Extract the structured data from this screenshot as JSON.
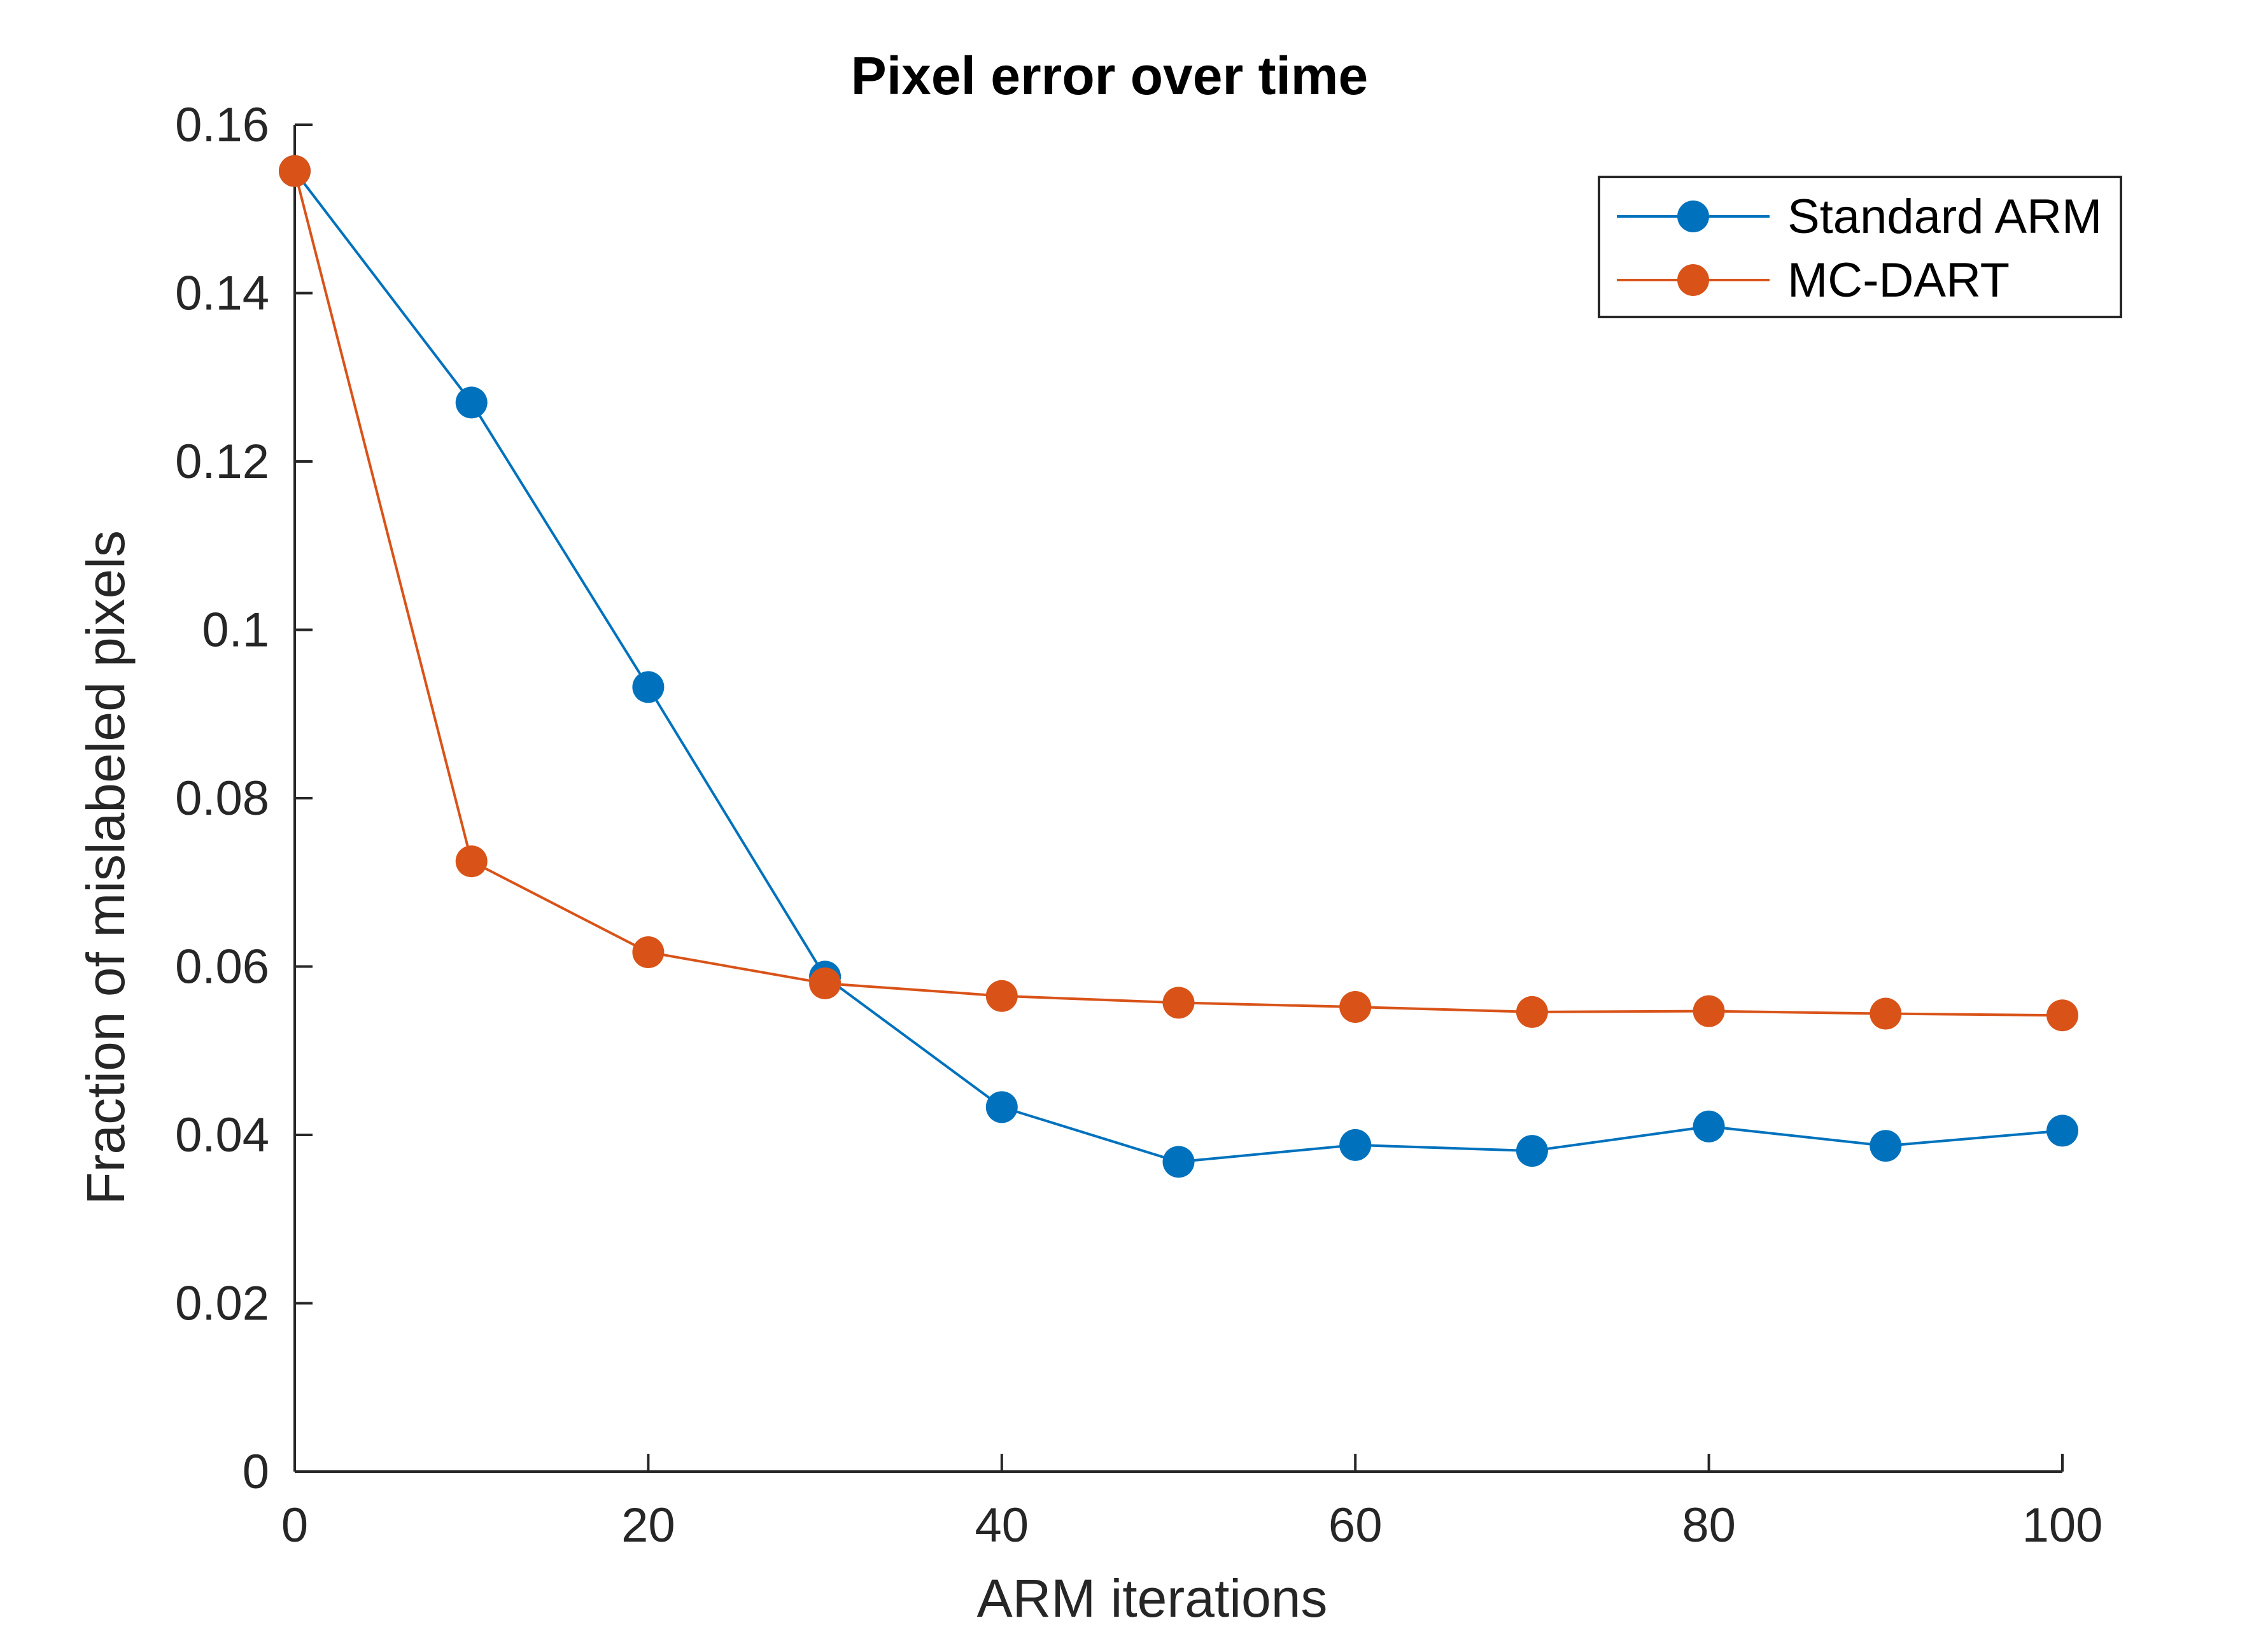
{
  "chart_data": {
    "type": "line",
    "title": "Pixel error over time",
    "xlabel": "ARM iterations",
    "ylabel": "Fraction of mislabeled pixels",
    "xlim": [
      0,
      100
    ],
    "ylim": [
      0,
      0.16
    ],
    "xticks": [
      0,
      20,
      40,
      60,
      80,
      100
    ],
    "xtick_labels": [
      "0",
      "20",
      "40",
      "60",
      "80",
      "100"
    ],
    "yticks": [
      0,
      0.02,
      0.04,
      0.06,
      0.08,
      0.1,
      0.12,
      0.14,
      0.16
    ],
    "ytick_labels": [
      "0",
      "0.02",
      "0.04",
      "0.06",
      "0.08",
      "0.1",
      "0.12",
      "0.14",
      "0.16"
    ],
    "grid": false,
    "legend_position": "top-right",
    "x": [
      0,
      10,
      20,
      30,
      40,
      50,
      60,
      70,
      80,
      90,
      100
    ],
    "series": [
      {
        "name": "Standard ARM",
        "color": "#0072BD",
        "values": [
          0.1545,
          0.127,
          0.0932,
          0.0588,
          0.0433,
          0.0368,
          0.0388,
          0.0381,
          0.041,
          0.0387,
          0.0405
        ]
      },
      {
        "name": "MC-DART",
        "color": "#D95319",
        "values": [
          0.1545,
          0.0725,
          0.0617,
          0.058,
          0.0565,
          0.0557,
          0.0552,
          0.0546,
          0.0547,
          0.0544,
          0.0542
        ]
      }
    ]
  }
}
